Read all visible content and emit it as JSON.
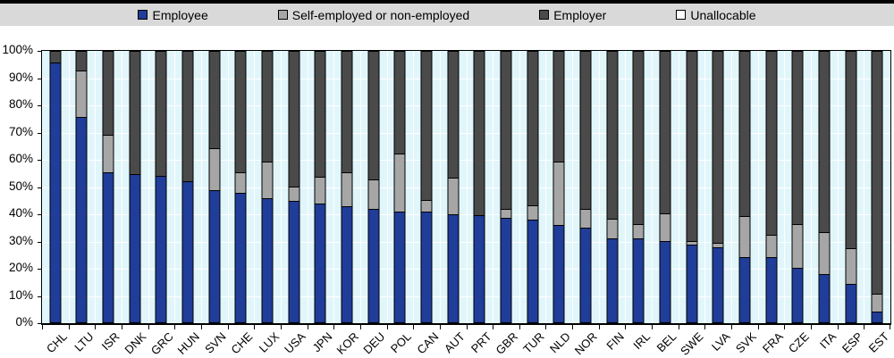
{
  "palette": {
    "page_background": "#ffffff",
    "top_rule": "#000000",
    "legend_strip_background": "#d9d9d9",
    "plot_background": "#e1f6fb",
    "gridline": "#ffffff",
    "axis_and_outline": "#000000"
  },
  "chart_data": {
    "type": "bar",
    "stacked": true,
    "title": "",
    "xlabel": "",
    "ylabel": "",
    "ylim": [
      0,
      100
    ],
    "yticks": [
      "0%",
      "10%",
      "20%",
      "30%",
      "40%",
      "50%",
      "60%",
      "70%",
      "80%",
      "90%",
      "100%"
    ],
    "grid": true,
    "legend_position": "top",
    "categories": [
      "CHL",
      "LTU",
      "ISR",
      "DNK",
      "GRC",
      "HUN",
      "SVN",
      "CHE",
      "LUX",
      "USA",
      "JPN",
      "KOR",
      "DEU",
      "POL",
      "CAN",
      "AUT",
      "PRT",
      "GBR",
      "TUR",
      "NLD",
      "NOR",
      "FIN",
      "IRL",
      "BEL",
      "SWE",
      "LVA",
      "SVK",
      "FRA",
      "CZE",
      "ITA",
      "ESP",
      "EST"
    ],
    "series": [
      {
        "name": "Employee",
        "color": "#1f3d99",
        "values": [
          96,
          76,
          55.5,
          54.5,
          54,
          52,
          49,
          48,
          46,
          45,
          44,
          43,
          42,
          41,
          41,
          40,
          39.5,
          38.5,
          38,
          36,
          35,
          31,
          31,
          30,
          28.5,
          27.5,
          24,
          24,
          20,
          17.5,
          14,
          3.5
        ]
      },
      {
        "name": "Self-employed or non-employed",
        "color": "#a6a6a6",
        "values": [
          0,
          17,
          13.5,
          0,
          0,
          0,
          15,
          7,
          13,
          5,
          9.5,
          12,
          10.5,
          21,
          4,
          13,
          0,
          3,
          5,
          23,
          6.5,
          7,
          5,
          10,
          1,
          1.5,
          15,
          8,
          16,
          15.5,
          13,
          6.5
        ]
      },
      {
        "name": "Employer",
        "color": "#4a4a4a",
        "values": [
          4,
          7,
          31,
          45.5,
          46,
          48,
          36,
          45,
          41,
          50,
          46.5,
          45,
          47.5,
          38,
          55,
          47,
          60.5,
          58.5,
          57,
          41,
          58.5,
          62,
          64,
          60,
          70.5,
          71,
          61,
          68,
          64,
          67,
          73,
          90
        ]
      },
      {
        "name": "Unallocable",
        "color": "#ffffff",
        "values": [
          0,
          0,
          0,
          0,
          0,
          0,
          0,
          0,
          0,
          0,
          0,
          0,
          0,
          0,
          0,
          0,
          0,
          0,
          0,
          0,
          0,
          0,
          0,
          0,
          0,
          0,
          0,
          0,
          0,
          0,
          0,
          0
        ]
      }
    ]
  }
}
